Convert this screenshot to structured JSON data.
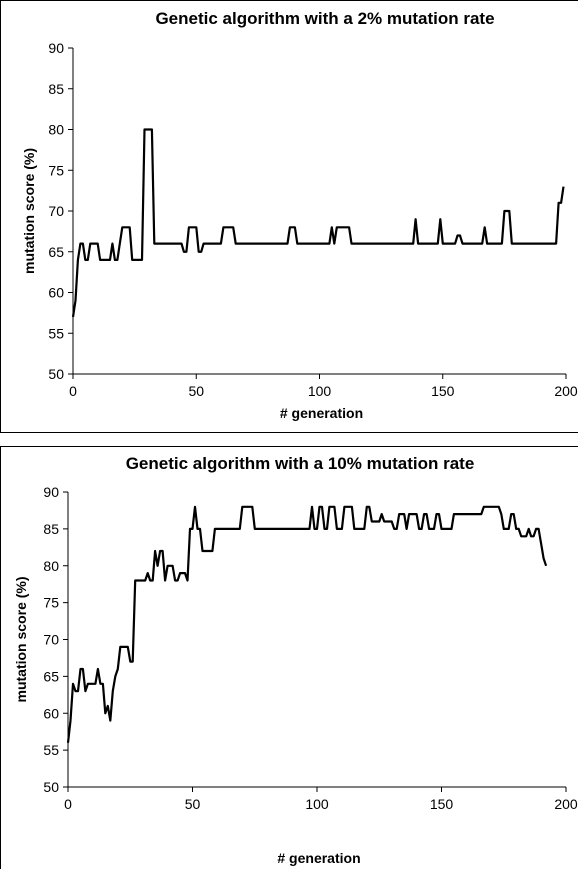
{
  "chart_data": [
    {
      "type": "line",
      "title": "Genetic algorithm with a 2% mutation rate",
      "xlabel": "# generation",
      "ylabel": "mutation score (%)",
      "xlim": [
        0,
        200
      ],
      "ylim": [
        50,
        90
      ],
      "xticks": [
        0,
        50,
        100,
        150,
        200
      ],
      "yticks": [
        50,
        55,
        60,
        65,
        70,
        75,
        80,
        85,
        90
      ],
      "grid": false,
      "series": [
        {
          "color": "#000000",
          "points": [
            [
              0,
              57
            ],
            [
              1,
              59
            ],
            [
              2,
              64
            ],
            [
              3,
              66
            ],
            [
              4,
              66
            ],
            [
              5,
              64
            ],
            [
              6,
              64
            ],
            [
              7,
              66
            ],
            [
              8,
              66
            ],
            [
              9,
              66
            ],
            [
              10,
              66
            ],
            [
              11,
              64
            ],
            [
              12,
              64
            ],
            [
              13,
              64
            ],
            [
              14,
              64
            ],
            [
              15,
              64
            ],
            [
              16,
              66
            ],
            [
              17,
              64
            ],
            [
              18,
              64
            ],
            [
              19,
              66
            ],
            [
              20,
              68
            ],
            [
              21,
              68
            ],
            [
              22,
              68
            ],
            [
              23,
              68
            ],
            [
              24,
              64
            ],
            [
              25,
              64
            ],
            [
              26,
              64
            ],
            [
              27,
              64
            ],
            [
              28,
              64
            ],
            [
              29,
              80
            ],
            [
              30,
              80
            ],
            [
              31,
              80
            ],
            [
              32,
              80
            ],
            [
              33,
              66
            ],
            [
              34,
              66
            ],
            [
              40,
              66
            ],
            [
              44,
              66
            ],
            [
              45,
              65
            ],
            [
              46,
              65
            ],
            [
              47,
              68
            ],
            [
              48,
              68
            ],
            [
              49,
              68
            ],
            [
              50,
              68
            ],
            [
              51,
              65
            ],
            [
              52,
              65
            ],
            [
              53,
              66
            ],
            [
              54,
              66
            ],
            [
              60,
              66
            ],
            [
              61,
              68
            ],
            [
              62,
              68
            ],
            [
              63,
              68
            ],
            [
              64,
              68
            ],
            [
              65,
              68
            ],
            [
              66,
              66
            ],
            [
              67,
              66
            ],
            [
              75,
              66
            ],
            [
              85,
              66
            ],
            [
              87,
              66
            ],
            [
              88,
              68
            ],
            [
              89,
              68
            ],
            [
              90,
              68
            ],
            [
              91,
              66
            ],
            [
              92,
              66
            ],
            [
              100,
              66
            ],
            [
              104,
              66
            ],
            [
              105,
              68
            ],
            [
              106,
              66
            ],
            [
              107,
              68
            ],
            [
              108,
              68
            ],
            [
              109,
              68
            ],
            [
              110,
              68
            ],
            [
              111,
              68
            ],
            [
              112,
              68
            ],
            [
              113,
              66
            ],
            [
              114,
              66
            ],
            [
              120,
              66
            ],
            [
              130,
              66
            ],
            [
              138,
              66
            ],
            [
              139,
              69
            ],
            [
              140,
              66
            ],
            [
              141,
              66
            ],
            [
              148,
              66
            ],
            [
              149,
              69
            ],
            [
              150,
              66
            ],
            [
              151,
              66
            ],
            [
              155,
              66
            ],
            [
              156,
              67
            ],
            [
              157,
              67
            ],
            [
              158,
              66
            ],
            [
              159,
              66
            ],
            [
              166,
              66
            ],
            [
              167,
              68
            ],
            [
              168,
              66
            ],
            [
              169,
              66
            ],
            [
              174,
              66
            ],
            [
              175,
              70
            ],
            [
              176,
              70
            ],
            [
              177,
              70
            ],
            [
              178,
              66
            ],
            [
              179,
              66
            ],
            [
              190,
              66
            ],
            [
              196,
              66
            ],
            [
              197,
              71
            ],
            [
              198,
              71
            ],
            [
              199,
              73
            ]
          ]
        }
      ]
    },
    {
      "type": "line",
      "title": "Genetic algorithm with a 10% mutation rate",
      "xlabel": "# generation",
      "ylabel": "mutation score (%)",
      "xlim": [
        0,
        200
      ],
      "ylim": [
        50,
        90
      ],
      "xticks": [
        0,
        50,
        100,
        150,
        200
      ],
      "yticks": [
        50,
        55,
        60,
        65,
        70,
        75,
        80,
        85,
        90
      ],
      "grid": false,
      "series": [
        {
          "color": "#000000",
          "points": [
            [
              0,
              56
            ],
            [
              1,
              59
            ],
            [
              2,
              64
            ],
            [
              3,
              63
            ],
            [
              4,
              63
            ],
            [
              5,
              66
            ],
            [
              6,
              66
            ],
            [
              7,
              63
            ],
            [
              8,
              64
            ],
            [
              9,
              64
            ],
            [
              10,
              64
            ],
            [
              11,
              64
            ],
            [
              12,
              66
            ],
            [
              13,
              64
            ],
            [
              14,
              64
            ],
            [
              15,
              60
            ],
            [
              16,
              61
            ],
            [
              17,
              59
            ],
            [
              18,
              63
            ],
            [
              19,
              65
            ],
            [
              20,
              66
            ],
            [
              21,
              69
            ],
            [
              22,
              69
            ],
            [
              23,
              69
            ],
            [
              24,
              69
            ],
            [
              25,
              67
            ],
            [
              26,
              67
            ],
            [
              27,
              78
            ],
            [
              28,
              78
            ],
            [
              29,
              78
            ],
            [
              30,
              78
            ],
            [
              31,
              78
            ],
            [
              32,
              79
            ],
            [
              33,
              78
            ],
            [
              34,
              78
            ],
            [
              35,
              82
            ],
            [
              36,
              80
            ],
            [
              37,
              82
            ],
            [
              38,
              82
            ],
            [
              39,
              78
            ],
            [
              40,
              80
            ],
            [
              41,
              80
            ],
            [
              42,
              80
            ],
            [
              43,
              78
            ],
            [
              44,
              78
            ],
            [
              45,
              79
            ],
            [
              46,
              79
            ],
            [
              47,
              79
            ],
            [
              48,
              78
            ],
            [
              49,
              85
            ],
            [
              50,
              85
            ],
            [
              51,
              88
            ],
            [
              52,
              85
            ],
            [
              53,
              85
            ],
            [
              54,
              82
            ],
            [
              55,
              82
            ],
            [
              56,
              82
            ],
            [
              57,
              82
            ],
            [
              58,
              82
            ],
            [
              59,
              85
            ],
            [
              60,
              85
            ],
            [
              68,
              85
            ],
            [
              69,
              85
            ],
            [
              70,
              88
            ],
            [
              71,
              88
            ],
            [
              72,
              88
            ],
            [
              73,
              88
            ],
            [
              74,
              88
            ],
            [
              75,
              85
            ],
            [
              76,
              85
            ],
            [
              85,
              85
            ],
            [
              97,
              85
            ],
            [
              98,
              88
            ],
            [
              99,
              85
            ],
            [
              100,
              85
            ],
            [
              101,
              88
            ],
            [
              102,
              88
            ],
            [
              103,
              85
            ],
            [
              104,
              85
            ],
            [
              105,
              88
            ],
            [
              106,
              88
            ],
            [
              107,
              88
            ],
            [
              108,
              85
            ],
            [
              109,
              85
            ],
            [
              110,
              85
            ],
            [
              111,
              88
            ],
            [
              112,
              88
            ],
            [
              113,
              88
            ],
            [
              114,
              88
            ],
            [
              115,
              85
            ],
            [
              116,
              85
            ],
            [
              119,
              85
            ],
            [
              120,
              88
            ],
            [
              121,
              88
            ],
            [
              122,
              86
            ],
            [
              123,
              86
            ],
            [
              124,
              86
            ],
            [
              125,
              86
            ],
            [
              126,
              87
            ],
            [
              127,
              86
            ],
            [
              128,
              86
            ],
            [
              129,
              86
            ],
            [
              130,
              86
            ],
            [
              131,
              85
            ],
            [
              132,
              85
            ],
            [
              133,
              87
            ],
            [
              134,
              87
            ],
            [
              135,
              87
            ],
            [
              136,
              85
            ],
            [
              137,
              87
            ],
            [
              138,
              87
            ],
            [
              139,
              87
            ],
            [
              140,
              87
            ],
            [
              141,
              85
            ],
            [
              142,
              85
            ],
            [
              143,
              87
            ],
            [
              144,
              87
            ],
            [
              145,
              85
            ],
            [
              146,
              85
            ],
            [
              147,
              85
            ],
            [
              148,
              87
            ],
            [
              149,
              87
            ],
            [
              150,
              85
            ],
            [
              151,
              85
            ],
            [
              152,
              85
            ],
            [
              153,
              85
            ],
            [
              154,
              85
            ],
            [
              155,
              87
            ],
            [
              156,
              87
            ],
            [
              157,
              87
            ],
            [
              160,
              87
            ],
            [
              165,
              87
            ],
            [
              166,
              87
            ],
            [
              167,
              88
            ],
            [
              168,
              88
            ],
            [
              169,
              88
            ],
            [
              170,
              88
            ],
            [
              171,
              88
            ],
            [
              172,
              88
            ],
            [
              173,
              88
            ],
            [
              174,
              87
            ],
            [
              175,
              85
            ],
            [
              176,
              85
            ],
            [
              177,
              85
            ],
            [
              178,
              87
            ],
            [
              179,
              87
            ],
            [
              180,
              85
            ],
            [
              181,
              85
            ],
            [
              182,
              84
            ],
            [
              183,
              84
            ],
            [
              184,
              84
            ],
            [
              185,
              85
            ],
            [
              186,
              84
            ],
            [
              187,
              84
            ],
            [
              188,
              85
            ],
            [
              189,
              85
            ],
            [
              190,
              83
            ],
            [
              191,
              81
            ],
            [
              192,
              80
            ]
          ]
        }
      ]
    }
  ]
}
